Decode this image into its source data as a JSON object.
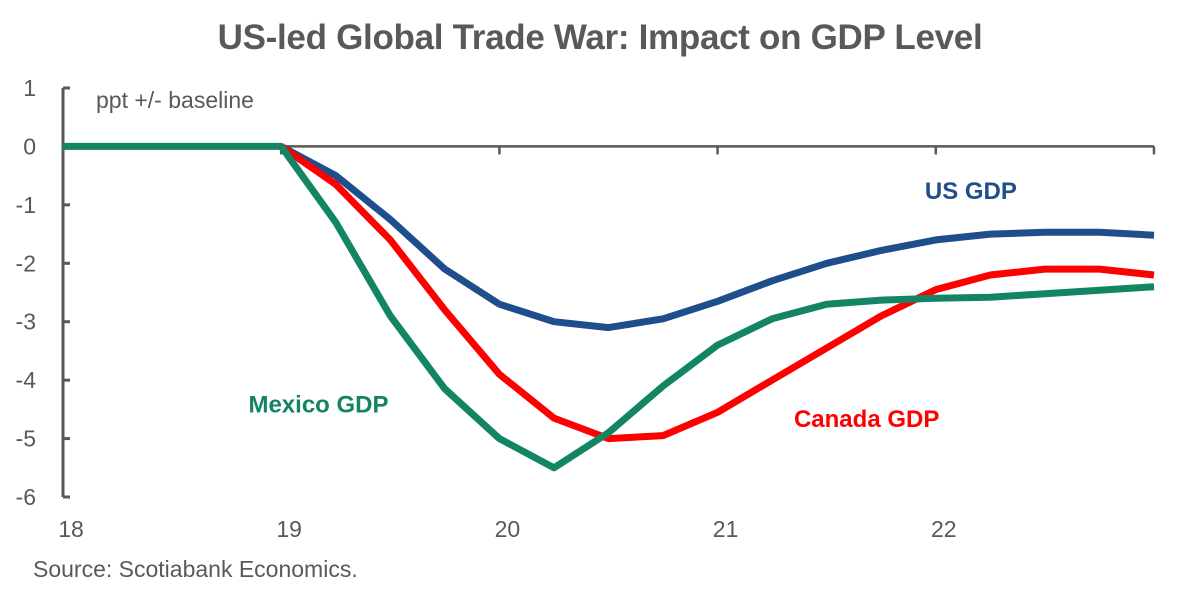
{
  "chart_data": {
    "type": "line",
    "title": "US-led Global Trade War: Impact on GDP Level",
    "ylabel": "ppt +/- baseline",
    "xlabel": "",
    "xlim": [
      18,
      23
    ],
    "ylim": [
      -6,
      1
    ],
    "yticks": [
      1,
      0,
      -1,
      -2,
      -3,
      -4,
      -5,
      -6
    ],
    "ytick_labels": [
      "1",
      "0",
      "-1",
      "-2",
      "-3",
      "-4",
      "-5",
      "-6"
    ],
    "xticks": [
      18,
      19,
      20,
      21,
      22
    ],
    "xtick_labels": [
      "18",
      "19",
      "20",
      "21",
      "22"
    ],
    "grid": false,
    "x": [
      18.0,
      18.25,
      18.5,
      18.75,
      19.0,
      19.25,
      19.5,
      19.75,
      20.0,
      20.25,
      20.5,
      20.75,
      21.0,
      21.25,
      21.5,
      21.75,
      22.0,
      22.25,
      22.5,
      22.75,
      23.0
    ],
    "series": [
      {
        "name": "US GDP",
        "color": "#1F4E8C",
        "values": [
          0,
          0,
          0,
          0,
          0,
          -0.5,
          -1.25,
          -2.1,
          -2.7,
          -3.0,
          -3.1,
          -2.95,
          -2.65,
          -2.3,
          -2.0,
          -1.78,
          -1.6,
          -1.5,
          -1.47,
          -1.47,
          -1.52
        ]
      },
      {
        "name": "Canada GDP",
        "color": "#FF0000",
        "values": [
          0,
          0,
          0,
          0,
          0,
          -0.65,
          -1.6,
          -2.8,
          -3.9,
          -4.65,
          -5.0,
          -4.95,
          -4.55,
          -4.0,
          -3.45,
          -2.9,
          -2.45,
          -2.2,
          -2.1,
          -2.1,
          -2.2
        ]
      },
      {
        "name": "Mexico GDP",
        "color": "#138564",
        "values": [
          0,
          0,
          0,
          0,
          0,
          -1.3,
          -2.9,
          -4.15,
          -5.0,
          -5.5,
          -4.9,
          -4.1,
          -3.4,
          -2.95,
          -2.7,
          -2.63,
          -2.6,
          -2.58,
          -2.52,
          -2.46,
          -2.4
        ]
      }
    ],
    "annotations": [
      {
        "text": "US GDP",
        "series": "US GDP",
        "x": 21.95,
        "y": -0.9
      },
      {
        "text": "Canada GDP",
        "series": "Canada GDP",
        "x": 21.35,
        "y": -4.8
      },
      {
        "text": "Mexico GDP",
        "series": "Mexico GDP",
        "x": 18.85,
        "y": -4.55
      }
    ],
    "source": "Source: Scotiabank Economics."
  }
}
